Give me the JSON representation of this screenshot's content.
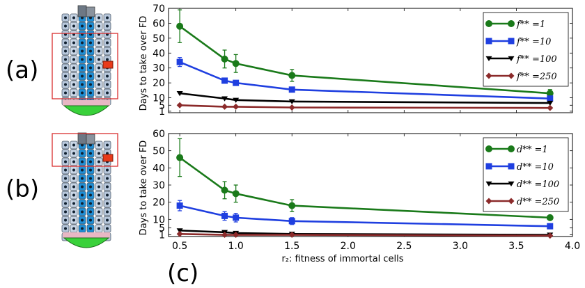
{
  "panel_labels": {
    "a": "(a)",
    "b": "(b)",
    "c": "(c)"
  },
  "chart_data": [
    {
      "type": "line",
      "panel": "top",
      "xlabel": "",
      "ylabel": "Days to take over FD",
      "xlim": [
        0.4,
        4.0
      ],
      "ylim": [
        0,
        70
      ],
      "y_ticks": [
        "70",
        "60",
        "50",
        "40",
        "30",
        "20",
        "10",
        "5",
        "1"
      ],
      "y_tick_values": [
        70,
        60,
        50,
        40,
        30,
        20,
        10,
        5,
        1
      ],
      "x": [
        0.5,
        0.9,
        1.0,
        1.5,
        3.8
      ],
      "legend_position": "top-right",
      "series": [
        {
          "name": "f** =1",
          "color": "#1a7a1a",
          "marker": "circle",
          "values": [
            58,
            36,
            33,
            25,
            13
          ],
          "errors": [
            11,
            6,
            6,
            4,
            2.5
          ]
        },
        {
          "name": "f** =10",
          "color": "#1f3fe0",
          "marker": "square",
          "values": [
            34,
            21.5,
            20,
            15.5,
            9.5
          ],
          "errors": [
            3,
            1.5,
            1.2,
            1,
            1
          ]
        },
        {
          "name": "f** =100",
          "color": "#000000",
          "marker": "triangle-down",
          "values": [
            13,
            9.5,
            8.5,
            7.5,
            6.5
          ],
          "errors": [
            0,
            0,
            0,
            0,
            0
          ]
        },
        {
          "name": "f** =250",
          "color": "#8b2a2a",
          "marker": "diamond",
          "values": [
            5,
            4,
            4,
            3.5,
            3.2
          ],
          "errors": [
            0,
            0,
            0,
            0,
            0
          ]
        }
      ]
    },
    {
      "type": "line",
      "panel": "bottom",
      "xlabel": "r₂: fitness of immortal cells",
      "ylabel": "Days to take over FD",
      "xlim": [
        0.4,
        4.0
      ],
      "ylim": [
        0,
        60
      ],
      "x_ticks": [
        "0.5",
        "1.0",
        "1.5",
        "2.0",
        "2.5",
        "3.0",
        "3.5",
        "4.0"
      ],
      "x_tick_values": [
        0.5,
        1.0,
        1.5,
        2.0,
        2.5,
        3.0,
        3.5,
        4.0
      ],
      "y_ticks": [
        "60",
        "50",
        "40",
        "30",
        "20",
        "10",
        "5",
        "1"
      ],
      "y_tick_values": [
        60,
        50,
        40,
        30,
        20,
        10,
        5,
        1
      ],
      "x": [
        0.5,
        0.9,
        1.0,
        1.5,
        3.8
      ],
      "legend_position": "top-right",
      "series": [
        {
          "name": "d** =1",
          "color": "#1a7a1a",
          "marker": "circle",
          "values": [
            46,
            27,
            25,
            18,
            11
          ],
          "errors": [
            11,
            5,
            5,
            3.5,
            1.2
          ]
        },
        {
          "name": "d** =10",
          "color": "#1f3fe0",
          "marker": "square",
          "values": [
            18,
            12,
            11,
            9,
            6
          ],
          "errors": [
            3,
            2.5,
            2.5,
            2,
            1
          ]
        },
        {
          "name": "d** =100",
          "color": "#000000",
          "marker": "triangle-down",
          "values": [
            3.5,
            2.5,
            2,
            1.5,
            1
          ],
          "errors": [
            0,
            0,
            0,
            0,
            0
          ]
        },
        {
          "name": "d** =250",
          "color": "#8b2a2a",
          "marker": "diamond",
          "values": [
            1.5,
            1,
            1,
            1,
            0.5
          ],
          "errors": [
            0,
            0,
            0,
            0,
            0
          ]
        }
      ]
    }
  ]
}
